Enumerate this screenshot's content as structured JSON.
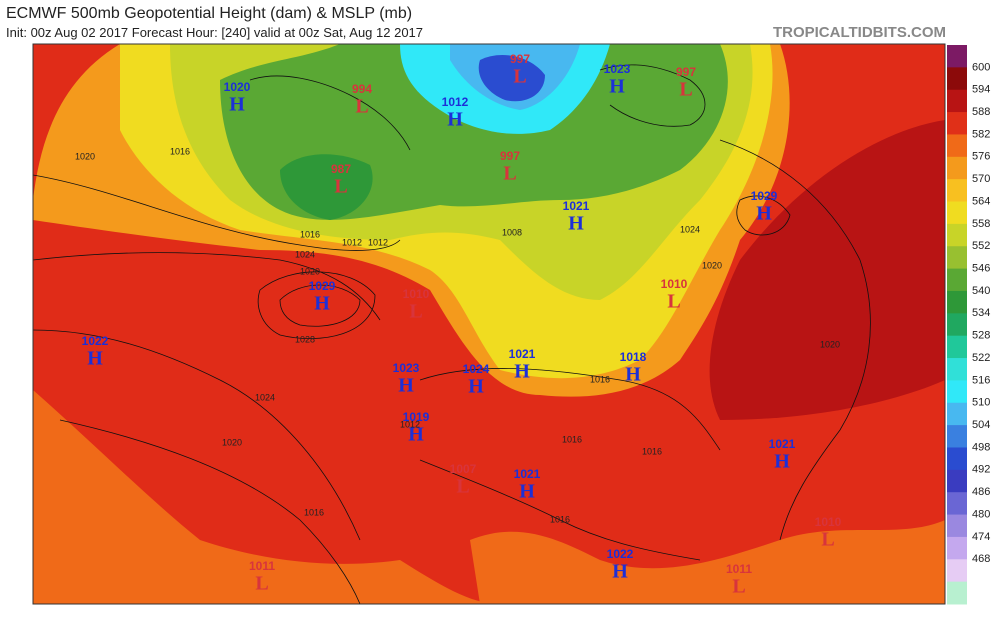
{
  "header": {
    "title": "ECMWF 500mb Geopotential Height (dam) & MSLP (mb)",
    "subtitle": "Init: 00z Aug 02 2017   Forecast Hour: [240]   valid at 00z Sat, Aug 12 2017",
    "source": "TROPICALTIDBITS.COM"
  },
  "colorbar": {
    "labels": [
      600,
      594,
      588,
      582,
      576,
      570,
      564,
      558,
      552,
      546,
      540,
      534,
      528,
      522,
      516,
      510,
      504,
      498,
      492,
      486,
      480,
      474,
      468
    ],
    "colors": [
      "#7c1a64",
      "#8c0a0a",
      "#b81414",
      "#e03018",
      "#f06a18",
      "#f49a1c",
      "#f8c020",
      "#f0dc20",
      "#c8d428",
      "#98c030",
      "#5aa834",
      "#2e9838",
      "#20a860",
      "#20c89a",
      "#30e0d8",
      "#30e8f8",
      "#48b8f0",
      "#3a80e0",
      "#2a4cd0",
      "#3a3cc0",
      "#6a66d4",
      "#9a88e0",
      "#c4a8ee",
      "#e6ccf4",
      "#b8f0d0"
    ]
  },
  "centers": [
    {
      "type": "H",
      "pressure": 1020
    },
    {
      "type": "L",
      "pressure": 994
    },
    {
      "type": "L",
      "pressure": 987
    },
    {
      "type": "H",
      "pressure": 1012
    },
    {
      "type": "L",
      "pressure": 997
    },
    {
      "type": "H",
      "pressure": 1023
    },
    {
      "type": "L",
      "pressure": 997
    },
    {
      "type": "L",
      "pressure": 997
    },
    {
      "type": "H",
      "pressure": 1021
    },
    {
      "type": "H",
      "pressure": 1029
    },
    {
      "type": "H",
      "pressure": 1029
    },
    {
      "type": "L",
      "pressure": 1010
    },
    {
      "type": "L",
      "pressure": 1010
    },
    {
      "type": "H",
      "pressure": 1022
    },
    {
      "type": "H",
      "pressure": 1023
    },
    {
      "type": "H",
      "pressure": 1024
    },
    {
      "type": "H",
      "pressure": 1021
    },
    {
      "type": "H",
      "pressure": 1018
    },
    {
      "type": "H",
      "pressure": 1019
    },
    {
      "type": "H",
      "pressure": 1021
    },
    {
      "type": "L",
      "pressure": 1007
    },
    {
      "type": "H",
      "pressure": 1021
    },
    {
      "type": "H",
      "pressure": 1022
    },
    {
      "type": "L",
      "pressure": 1011
    },
    {
      "type": "L",
      "pressure": 1011
    },
    {
      "type": "L",
      "pressure": 1010
    }
  ],
  "isobars": [
    1020,
    1016,
    1012,
    1016,
    1020,
    1024,
    1028,
    1024,
    1020,
    1016,
    1012,
    1016,
    1016,
    1020,
    1024,
    1008,
    1012,
    1016,
    1020,
    1016
  ]
}
